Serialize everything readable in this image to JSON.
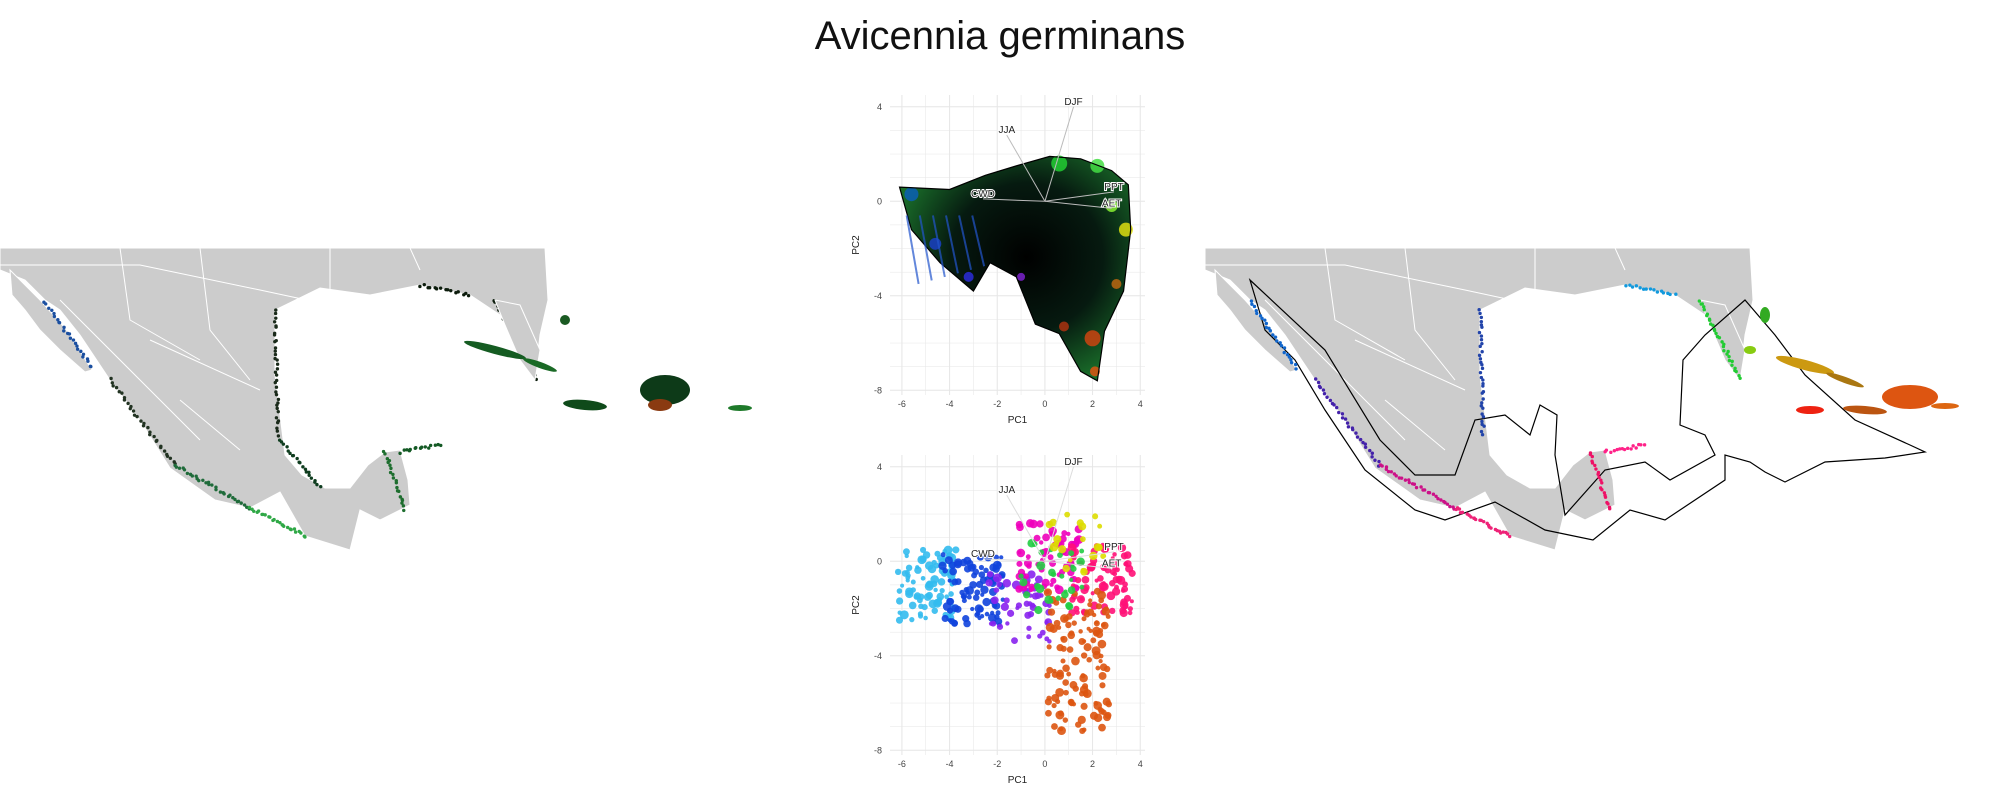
{
  "title": "Avicennia germinans",
  "colors": {
    "land": "#cccccc",
    "border": "#ffffff",
    "grid": "#e6e6e6",
    "hull": "#000000"
  },
  "chart_data": [
    {
      "type": "scatter",
      "panel": "pca-color-gradient",
      "xlabel": "PC1",
      "ylabel": "PC2",
      "xlim": [
        -6.5,
        4.2
      ],
      "ylim": [
        -8.2,
        4.5
      ],
      "xticks": [
        -6,
        -4,
        -2,
        0,
        2,
        4
      ],
      "yticks": [
        -8,
        -4,
        0,
        4
      ],
      "grid": true,
      "vectors": [
        {
          "label": "DJF",
          "x": 1.2,
          "y": 4.0
        },
        {
          "label": "JJA",
          "x": -1.6,
          "y": 2.8
        },
        {
          "label": "PPT",
          "x": 2.9,
          "y": 0.4
        },
        {
          "label": "AET",
          "x": 2.8,
          "y": -0.3
        },
        {
          "label": "CWD",
          "x": -2.6,
          "y": 0.1
        }
      ],
      "cloud": [
        {
          "x": -6.1,
          "y": 0.6
        },
        {
          "x": -4.0,
          "y": 0.5
        },
        {
          "x": -2.5,
          "y": 1.1
        },
        {
          "x": -1.2,
          "y": 1.5
        },
        {
          "x": 0.2,
          "y": 1.9
        },
        {
          "x": 1.5,
          "y": 1.8
        },
        {
          "x": 2.8,
          "y": 1.3
        },
        {
          "x": 3.5,
          "y": 0.7
        },
        {
          "x": 3.6,
          "y": -1.2
        },
        {
          "x": 3.3,
          "y": -3.8
        },
        {
          "x": 2.5,
          "y": -5.5
        },
        {
          "x": 2.2,
          "y": -7.6
        },
        {
          "x": 1.5,
          "y": -7.2
        },
        {
          "x": 0.6,
          "y": -5.6
        },
        {
          "x": -0.4,
          "y": -5.2
        },
        {
          "x": -1.2,
          "y": -3.2
        },
        {
          "x": -2.3,
          "y": -2.6
        },
        {
          "x": -3.0,
          "y": -3.8
        },
        {
          "x": -4.4,
          "y": -2.6
        },
        {
          "x": -5.6,
          "y": -1.2
        }
      ]
    },
    {
      "type": "scatter",
      "panel": "pca-cluster-colors",
      "xlabel": "PC1",
      "ylabel": "PC2",
      "xlim": [
        -6.5,
        4.2
      ],
      "ylim": [
        -8.2,
        4.5
      ],
      "xticks": [
        -6,
        -4,
        -2,
        0,
        2,
        4
      ],
      "yticks": [
        -8,
        -4,
        0,
        4
      ],
      "grid": true,
      "vectors": [
        {
          "label": "DJF",
          "x": 1.2,
          "y": 4.0
        },
        {
          "label": "JJA",
          "x": -1.6,
          "y": 2.8
        },
        {
          "label": "PPT",
          "x": 2.9,
          "y": 0.4
        },
        {
          "label": "AET",
          "x": 2.8,
          "y": -0.3
        },
        {
          "label": "CWD",
          "x": -2.6,
          "y": 0.1
        }
      ],
      "clusters": [
        {
          "color": "#33bbee",
          "cx": -5.0,
          "cy": -1.0,
          "n": 90
        },
        {
          "color": "#1144dd",
          "cx": -3.0,
          "cy": -1.2,
          "n": 90
        },
        {
          "color": "#8822ee",
          "cx": -1.1,
          "cy": -2.0,
          "n": 50
        },
        {
          "color": "#ee00bb",
          "cx": 0.2,
          "cy": 0.2,
          "n": 70
        },
        {
          "color": "#ff1177",
          "cx": 2.4,
          "cy": -0.8,
          "n": 80
        },
        {
          "color": "#dd5511",
          "cx": 1.4,
          "cy": -4.2,
          "n": 120
        },
        {
          "color": "#22cc44",
          "cx": 0.3,
          "cy": -0.6,
          "n": 30
        },
        {
          "color": "#dddd00",
          "cx": 1.2,
          "cy": 0.6,
          "n": 20
        }
      ]
    }
  ]
}
